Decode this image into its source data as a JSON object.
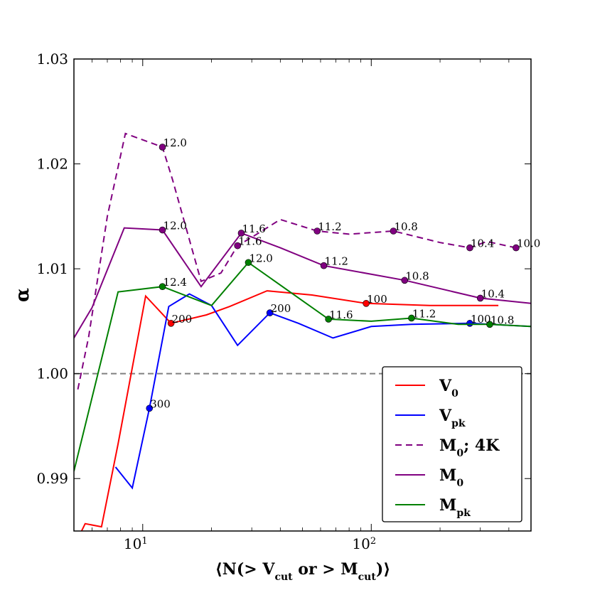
{
  "chart_data": {
    "type": "line",
    "xscale": "log",
    "xlim": [
      5,
      500
    ],
    "ylim": [
      0.985,
      1.03
    ],
    "xlabel": "⟨N(> V_cut or > M_cut)⟩",
    "ylabel": "α",
    "yticks": [
      0.99,
      1.0,
      1.01,
      1.02,
      1.03
    ],
    "ytick_labels": [
      "0.99",
      "1.00",
      "1.01",
      "1.02",
      "1.03"
    ],
    "xticks": [
      10,
      100
    ],
    "xtick_labels": [
      [
        "10",
        "1"
      ],
      [
        "10",
        "2"
      ]
    ],
    "reference_line": {
      "y": 1.0,
      "color": "#808080",
      "style": "dashed"
    },
    "legend": {
      "position": "lower-right"
    },
    "series": [
      {
        "name": "V0",
        "legend_main": "V",
        "legend_sub": "0",
        "color": "#ff0000",
        "style": "solid",
        "x": [
          5,
          5.6,
          6.6,
          7.8,
          10.3,
          13.3,
          19,
          24,
          35,
          55,
          95,
          180,
          360
        ],
        "y": [
          0.9835,
          0.9857,
          0.9854,
          0.9933,
          1.0074,
          1.0048,
          1.0056,
          1.0064,
          1.0079,
          1.0075,
          1.0067,
          1.0065,
          1.0065
        ],
        "markers": [
          {
            "x": 13.3,
            "y": 1.0048,
            "label": "200"
          },
          {
            "x": 95,
            "y": 1.0067,
            "label": "100"
          }
        ]
      },
      {
        "name": "Vpk",
        "legend_main": "V",
        "legend_sub": "pk",
        "color": "#0000ff",
        "style": "solid",
        "x": [
          7.6,
          9,
          10.7,
          13,
          16,
          20,
          26,
          36,
          48,
          68,
          100,
          150,
          270,
          500
        ],
        "y": [
          0.9911,
          0.9891,
          0.9967,
          1.0064,
          1.0076,
          1.0065,
          1.0027,
          1.0058,
          1.0048,
          1.0034,
          1.0045,
          1.0047,
          1.0048,
          1.0045
        ],
        "markers": [
          {
            "x": 10.7,
            "y": 0.9967,
            "label": "300"
          },
          {
            "x": 36,
            "y": 1.0058,
            "label": "200"
          },
          {
            "x": 270,
            "y": 1.0048,
            "label": "100"
          }
        ]
      },
      {
        "name": "M0; 4K",
        "legend_main": "M",
        "legend_sub": "0",
        "legend_suffix": "; 4K",
        "color": "#800080",
        "style": "dashed",
        "x": [
          5.2,
          5.8,
          7,
          8.4,
          12.2,
          13.5,
          18,
          22,
          26,
          30,
          40,
          58,
          80,
          125,
          200,
          270,
          320,
          430
        ],
        "y": [
          0.9985,
          1.0035,
          1.015,
          1.0229,
          1.0216,
          1.0185,
          1.0088,
          1.0096,
          1.0122,
          1.013,
          1.0147,
          1.0136,
          1.0133,
          1.0136,
          1.0125,
          1.012,
          1.0126,
          1.012
        ],
        "markers": [
          {
            "x": 12.2,
            "y": 1.0216,
            "label": "12.0"
          },
          {
            "x": 26,
            "y": 1.0122,
            "label": "11.6"
          },
          {
            "x": 58,
            "y": 1.0136,
            "label": "11.2"
          },
          {
            "x": 125,
            "y": 1.0136,
            "label": "10.8"
          },
          {
            "x": 270,
            "y": 1.012,
            "label": "10.4"
          },
          {
            "x": 430,
            "y": 1.012,
            "label": "10.0"
          }
        ]
      },
      {
        "name": "M0",
        "legend_main": "M",
        "legend_sub": "0",
        "color": "#800080",
        "style": "solid",
        "x": [
          5,
          6,
          8.3,
          12.2,
          18,
          27,
          40,
          62,
          140,
          300,
          500
        ],
        "y": [
          1.0034,
          1.0063,
          1.0139,
          1.0137,
          1.0083,
          1.0134,
          1.012,
          1.0103,
          1.0089,
          1.0072,
          1.0067
        ],
        "markers": [
          {
            "x": 12.2,
            "y": 1.0137,
            "label": "12.0"
          },
          {
            "x": 27,
            "y": 1.0134,
            "label": "11.6"
          },
          {
            "x": 62,
            "y": 1.0103,
            "label": "11.2"
          },
          {
            "x": 140,
            "y": 1.0089,
            "label": "10.8"
          },
          {
            "x": 300,
            "y": 1.0072,
            "label": "10.4"
          }
        ]
      },
      {
        "name": "Mpk",
        "legend_main": "M",
        "legend_sub": "pk",
        "color": "#008000",
        "style": "solid",
        "x": [
          5,
          7.8,
          12.2,
          20,
          29,
          65,
          100,
          150,
          240,
          330,
          500
        ],
        "y": [
          0.9907,
          1.0078,
          1.0083,
          1.0065,
          1.0106,
          1.0052,
          1.005,
          1.0053,
          1.0047,
          1.0047,
          1.0045
        ],
        "markers": [
          {
            "x": 12.2,
            "y": 1.0083,
            "label": "12.4"
          },
          {
            "x": 29,
            "y": 1.0106,
            "label": "12.0"
          },
          {
            "x": 65,
            "y": 1.0052,
            "label": "11.6"
          },
          {
            "x": 150,
            "y": 1.0053,
            "label": "11.2"
          },
          {
            "x": 330,
            "y": 1.0047,
            "label": "10.8"
          }
        ]
      }
    ]
  }
}
